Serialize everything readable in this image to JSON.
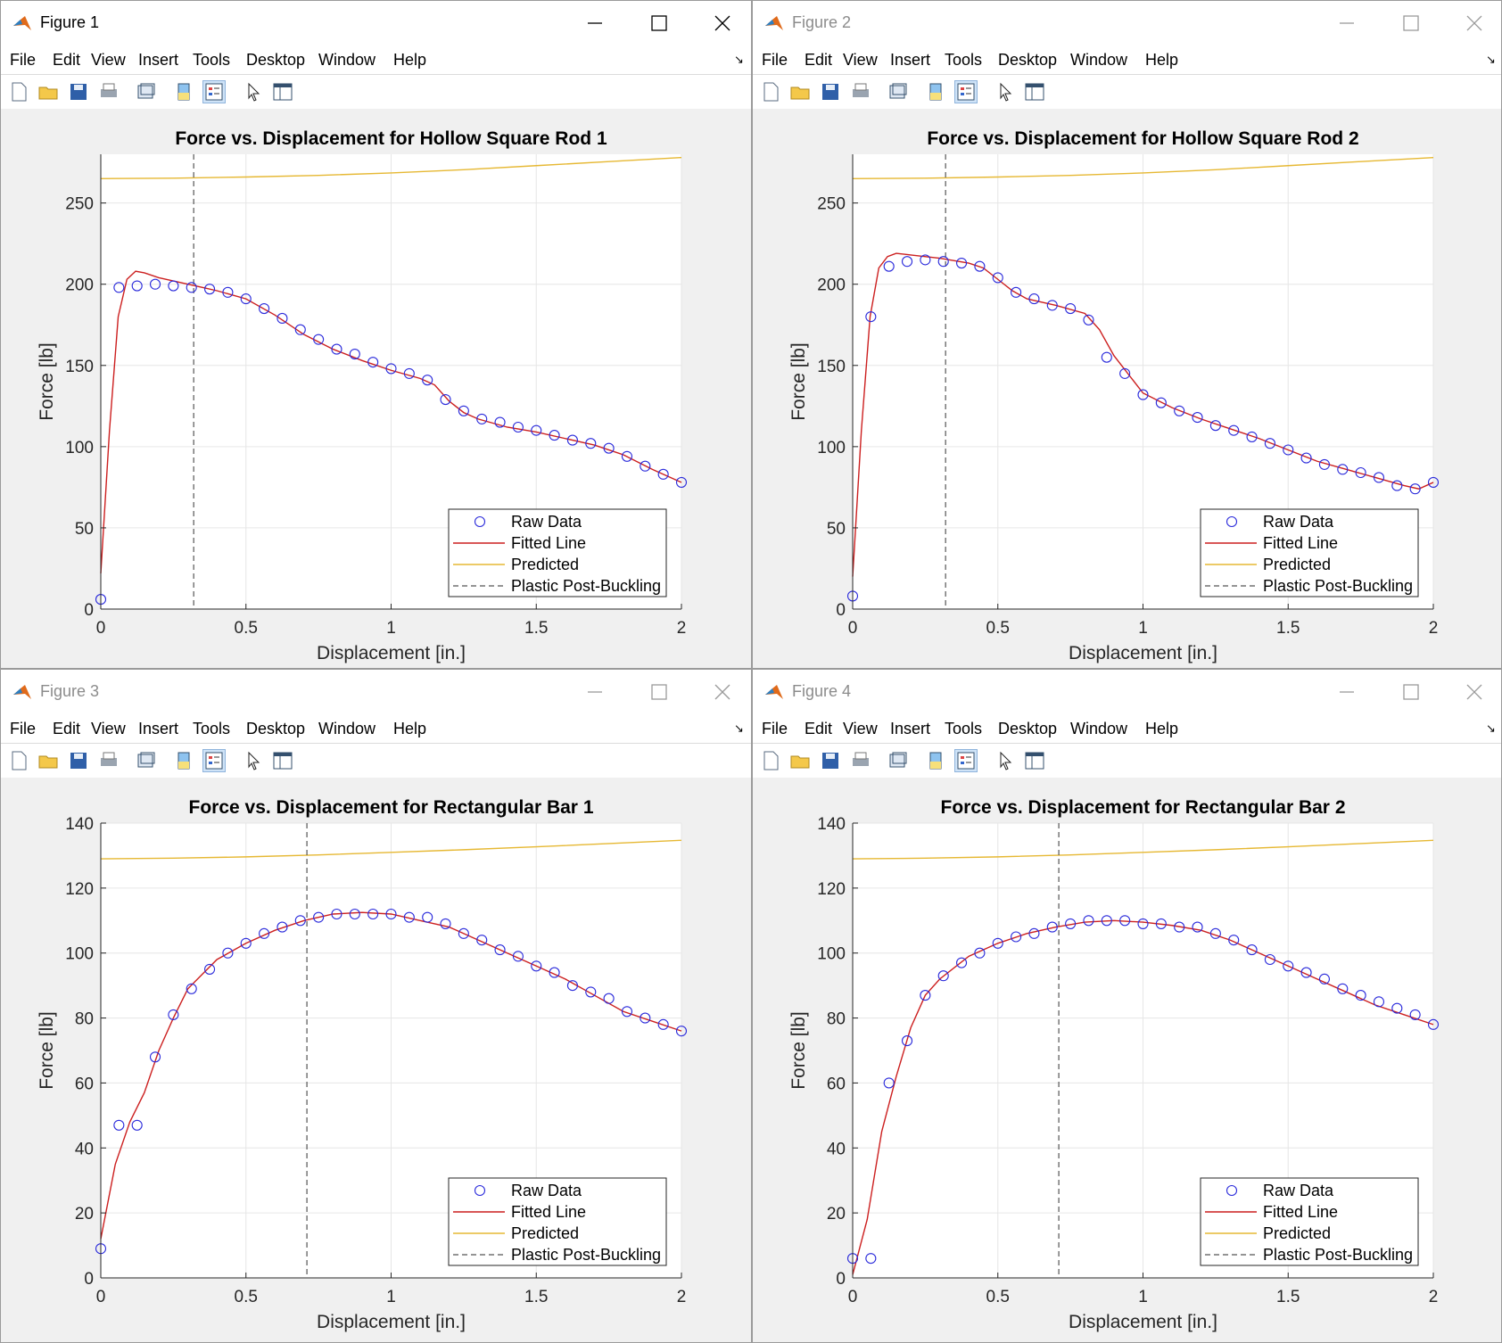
{
  "menu_items": [
    "File",
    "Edit",
    "View",
    "Insert",
    "Tools",
    "Desktop",
    "Window",
    "Help"
  ],
  "colors": {
    "raw": "#2b2bdb",
    "fitted": "#cc1f1f",
    "predicted": "#e6b833",
    "plastic": "#555555",
    "grid": "#e6e6e6"
  },
  "figures": [
    {
      "title": "Figure 1",
      "active": true,
      "chart_data": {
        "type": "line",
        "title": "Force vs. Displacement for Hollow Square Rod 1",
        "xlabel": "Displacement [in.]",
        "ylabel": "Force [lb]",
        "xlim": [
          0,
          2
        ],
        "ylim": [
          0,
          280
        ],
        "xticks": [
          0,
          0.5,
          1,
          1.5,
          2
        ],
        "xtick_labels": [
          "0",
          "0.5",
          "1",
          "1.5",
          "2"
        ],
        "yticks": [
          0,
          50,
          100,
          150,
          200,
          250
        ],
        "ytick_labels": [
          "0",
          "50",
          "100",
          "150",
          "200",
          "250"
        ],
        "grid": true,
        "legend_position": "bottom-right",
        "legend_labels": [
          "Raw Data",
          "Fitted Line",
          "Predicted",
          "Plastic Post-Buckling"
        ],
        "plastic_x": 0.32,
        "raw_x": [
          0,
          0.0625,
          0.125,
          0.1875,
          0.25,
          0.3125,
          0.375,
          0.4375,
          0.5,
          0.5625,
          0.625,
          0.6875,
          0.75,
          0.8125,
          0.875,
          0.9375,
          1.0,
          1.0625,
          1.125,
          1.1875,
          1.25,
          1.3125,
          1.375,
          1.4375,
          1.5,
          1.5625,
          1.625,
          1.6875,
          1.75,
          1.8125,
          1.875,
          1.9375,
          2.0
        ],
        "raw_y": [
          6,
          198,
          199,
          200,
          199,
          198,
          197,
          195,
          191,
          185,
          179,
          172,
          166,
          160,
          157,
          152,
          148,
          145,
          141,
          129,
          122,
          117,
          115,
          112,
          110,
          107,
          104,
          102,
          99,
          94,
          88,
          83,
          78
        ],
        "fitted_x": [
          0,
          0.03,
          0.06,
          0.09,
          0.12,
          0.15,
          0.2,
          0.25,
          0.3,
          0.35,
          0.4,
          0.5,
          0.6,
          0.7,
          0.8,
          0.9,
          1.0,
          1.1,
          1.15,
          1.2,
          1.25,
          1.3,
          1.4,
          1.5,
          1.6,
          1.7,
          1.8,
          1.9,
          2.0
        ],
        "fitted_y": [
          22,
          110,
          180,
          203,
          208,
          207,
          204,
          202,
          200,
          198,
          196,
          191,
          181,
          169,
          160,
          153,
          147,
          142,
          138,
          128,
          121,
          117,
          112,
          109,
          105,
          101,
          95,
          86,
          78
        ],
        "predicted_x": [
          0,
          0.25,
          0.5,
          0.75,
          1.0,
          1.25,
          1.5,
          1.75,
          2.0
        ],
        "predicted_y": [
          265,
          265.3,
          266,
          267,
          268.5,
          270.5,
          273,
          275.5,
          278
        ]
      }
    },
    {
      "title": "Figure 2",
      "active": false,
      "chart_data": {
        "type": "line",
        "title": "Force vs. Displacement for Hollow Square Rod 2",
        "xlabel": "Displacement [in.]",
        "ylabel": "Force [lb]",
        "xlim": [
          0,
          2
        ],
        "ylim": [
          0,
          280
        ],
        "xticks": [
          0,
          0.5,
          1,
          1.5,
          2
        ],
        "xtick_labels": [
          "0",
          "0.5",
          "1",
          "1.5",
          "2"
        ],
        "yticks": [
          0,
          50,
          100,
          150,
          200,
          250
        ],
        "ytick_labels": [
          "0",
          "50",
          "100",
          "150",
          "200",
          "250"
        ],
        "grid": true,
        "legend_position": "bottom-right",
        "legend_labels": [
          "Raw Data",
          "Fitted Line",
          "Predicted",
          "Plastic Post-Buckling"
        ],
        "plastic_x": 0.32,
        "raw_x": [
          0,
          0.0625,
          0.125,
          0.1875,
          0.25,
          0.3125,
          0.375,
          0.4375,
          0.5,
          0.5625,
          0.625,
          0.6875,
          0.75,
          0.8125,
          0.875,
          0.9375,
          1.0,
          1.0625,
          1.125,
          1.1875,
          1.25,
          1.3125,
          1.375,
          1.4375,
          1.5,
          1.5625,
          1.625,
          1.6875,
          1.75,
          1.8125,
          1.875,
          1.9375,
          2.0
        ],
        "raw_y": [
          8,
          180,
          211,
          214,
          215,
          214,
          213,
          211,
          204,
          195,
          191,
          187,
          185,
          178,
          155,
          145,
          132,
          127,
          122,
          118,
          113,
          110,
          106,
          102,
          98,
          93,
          89,
          86,
          84,
          81,
          76,
          74,
          78
        ],
        "fitted_x": [
          0,
          0.03,
          0.06,
          0.09,
          0.12,
          0.15,
          0.2,
          0.3,
          0.4,
          0.45,
          0.5,
          0.55,
          0.6,
          0.7,
          0.8,
          0.85,
          0.9,
          1.0,
          1.1,
          1.2,
          1.3,
          1.4,
          1.5,
          1.6,
          1.7,
          1.8,
          1.9,
          1.95,
          2.0
        ],
        "fitted_y": [
          20,
          110,
          180,
          210,
          217,
          219,
          218,
          216,
          213,
          210,
          203,
          196,
          191,
          187,
          182,
          172,
          156,
          133,
          124,
          117,
          111,
          105,
          98,
          91,
          86,
          81,
          76,
          74,
          78
        ],
        "predicted_x": [
          0,
          0.25,
          0.5,
          0.75,
          1.0,
          1.25,
          1.5,
          1.75,
          2.0
        ],
        "predicted_y": [
          265,
          265.3,
          266,
          267,
          268.5,
          270.5,
          273,
          275.5,
          278
        ]
      }
    },
    {
      "title": "Figure 3",
      "active": false,
      "chart_data": {
        "type": "line",
        "title": "Force vs. Displacement for Rectangular Bar 1",
        "xlabel": "Displacement [in.]",
        "ylabel": "Force [lb]",
        "xlim": [
          0,
          2
        ],
        "ylim": [
          0,
          140
        ],
        "xticks": [
          0,
          0.5,
          1,
          1.5,
          2
        ],
        "xtick_labels": [
          "0",
          "0.5",
          "1",
          "1.5",
          "2"
        ],
        "yticks": [
          0,
          20,
          40,
          60,
          80,
          100,
          120,
          140
        ],
        "ytick_labels": [
          "0",
          "20",
          "40",
          "60",
          "80",
          "100",
          "120",
          "140"
        ],
        "grid": true,
        "legend_position": "bottom-right",
        "legend_labels": [
          "Raw Data",
          "Fitted Line",
          "Predicted",
          "Plastic Post-Buckling"
        ],
        "plastic_x": 0.71,
        "raw_x": [
          0,
          0.0625,
          0.125,
          0.1875,
          0.25,
          0.3125,
          0.375,
          0.4375,
          0.5,
          0.5625,
          0.625,
          0.6875,
          0.75,
          0.8125,
          0.875,
          0.9375,
          1.0,
          1.0625,
          1.125,
          1.1875,
          1.25,
          1.3125,
          1.375,
          1.4375,
          1.5,
          1.5625,
          1.625,
          1.6875,
          1.75,
          1.8125,
          1.875,
          1.9375,
          2.0
        ],
        "raw_y": [
          9,
          47,
          47,
          68,
          81,
          89,
          95,
          100,
          103,
          106,
          108,
          110,
          111,
          112,
          112,
          112,
          112,
          111,
          111,
          109,
          106,
          104,
          101,
          99,
          96,
          94,
          90,
          88,
          86,
          82,
          80,
          78,
          76
        ],
        "fitted_x": [
          0,
          0.05,
          0.1,
          0.15,
          0.2,
          0.25,
          0.3,
          0.4,
          0.5,
          0.6,
          0.7,
          0.8,
          0.9,
          1.0,
          1.1,
          1.2,
          1.3,
          1.4,
          1.5,
          1.6,
          1.7,
          1.8,
          1.9,
          2.0
        ],
        "fitted_y": [
          12,
          35,
          48,
          57,
          70,
          80,
          89,
          98,
          103,
          107,
          110,
          112,
          112.5,
          112,
          110,
          108,
          104,
          100,
          96,
          92,
          87,
          82,
          79,
          76
        ],
        "predicted_x": [
          0,
          0.25,
          0.5,
          0.75,
          1.0,
          1.25,
          1.5,
          1.75,
          2.0
        ],
        "predicted_y": [
          129,
          129.2,
          129.6,
          130.2,
          131,
          131.8,
          132.7,
          133.7,
          134.7
        ]
      }
    },
    {
      "title": "Figure 4",
      "active": false,
      "chart_data": {
        "type": "line",
        "title": "Force vs. Displacement for Rectangular Bar 2",
        "xlabel": "Displacement [in.]",
        "ylabel": "Force [lb]",
        "xlim": [
          0,
          2
        ],
        "ylim": [
          0,
          140
        ],
        "xticks": [
          0,
          0.5,
          1,
          1.5,
          2
        ],
        "xtick_labels": [
          "0",
          "0.5",
          "1",
          "1.5",
          "2"
        ],
        "yticks": [
          0,
          20,
          40,
          60,
          80,
          100,
          120,
          140
        ],
        "ytick_labels": [
          "0",
          "20",
          "40",
          "60",
          "80",
          "100",
          "120",
          "140"
        ],
        "grid": true,
        "legend_position": "bottom-right",
        "legend_labels": [
          "Raw Data",
          "Fitted Line",
          "Predicted",
          "Plastic Post-Buckling"
        ],
        "plastic_x": 0.71,
        "raw_x": [
          0,
          0.0625,
          0.125,
          0.1875,
          0.25,
          0.3125,
          0.375,
          0.4375,
          0.5,
          0.5625,
          0.625,
          0.6875,
          0.75,
          0.8125,
          0.875,
          0.9375,
          1.0,
          1.0625,
          1.125,
          1.1875,
          1.25,
          1.3125,
          1.375,
          1.4375,
          1.5,
          1.5625,
          1.625,
          1.6875,
          1.75,
          1.8125,
          1.875,
          1.9375,
          2.0
        ],
        "raw_y": [
          6,
          6,
          60,
          73,
          87,
          93,
          97,
          100,
          103,
          105,
          106,
          108,
          109,
          110,
          110,
          110,
          109,
          109,
          108,
          108,
          106,
          104,
          101,
          98,
          96,
          94,
          92,
          89,
          87,
          85,
          83,
          81,
          78
        ],
        "fitted_x": [
          0,
          0.05,
          0.1,
          0.15,
          0.2,
          0.25,
          0.3,
          0.4,
          0.5,
          0.6,
          0.7,
          0.8,
          0.9,
          1.0,
          1.1,
          1.2,
          1.3,
          1.4,
          1.5,
          1.6,
          1.7,
          1.8,
          1.9,
          2.0
        ],
        "fitted_y": [
          1,
          18,
          45,
          62,
          77,
          87,
          92,
          99,
          103,
          106,
          108,
          109.5,
          110,
          109.5,
          108.5,
          107,
          104,
          100,
          96,
          92,
          88,
          84,
          81,
          78
        ],
        "predicted_x": [
          0,
          0.25,
          0.5,
          0.75,
          1.0,
          1.25,
          1.5,
          1.75,
          2.0
        ],
        "predicted_y": [
          129,
          129.2,
          129.6,
          130.2,
          131,
          131.8,
          132.7,
          133.7,
          134.7
        ]
      }
    }
  ]
}
